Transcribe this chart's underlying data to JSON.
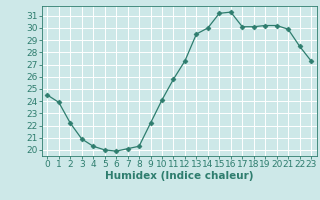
{
  "x": [
    0,
    1,
    2,
    3,
    4,
    5,
    6,
    7,
    8,
    9,
    10,
    11,
    12,
    13,
    14,
    15,
    16,
    17,
    18,
    19,
    20,
    21,
    22,
    23
  ],
  "y": [
    24.5,
    23.9,
    22.2,
    20.9,
    20.3,
    20.0,
    19.9,
    20.1,
    20.3,
    22.2,
    24.1,
    25.8,
    27.3,
    29.5,
    30.0,
    31.2,
    31.3,
    30.1,
    30.1,
    30.2,
    30.2,
    29.9,
    28.5,
    27.3
  ],
  "line_color": "#2e7d6e",
  "marker": "D",
  "marker_size": 2.5,
  "bg_color": "#cde8e8",
  "grid_color": "#ffffff",
  "xlabel": "Humidex (Indice chaleur)",
  "ylim": [
    19.5,
    31.8
  ],
  "xlim": [
    -0.5,
    23.5
  ],
  "yticks": [
    20,
    21,
    22,
    23,
    24,
    25,
    26,
    27,
    28,
    29,
    30,
    31
  ],
  "xticks": [
    0,
    1,
    2,
    3,
    4,
    5,
    6,
    7,
    8,
    9,
    10,
    11,
    12,
    13,
    14,
    15,
    16,
    17,
    18,
    19,
    20,
    21,
    22,
    23
  ],
  "label_fontsize": 7.5,
  "tick_fontsize": 6.5
}
